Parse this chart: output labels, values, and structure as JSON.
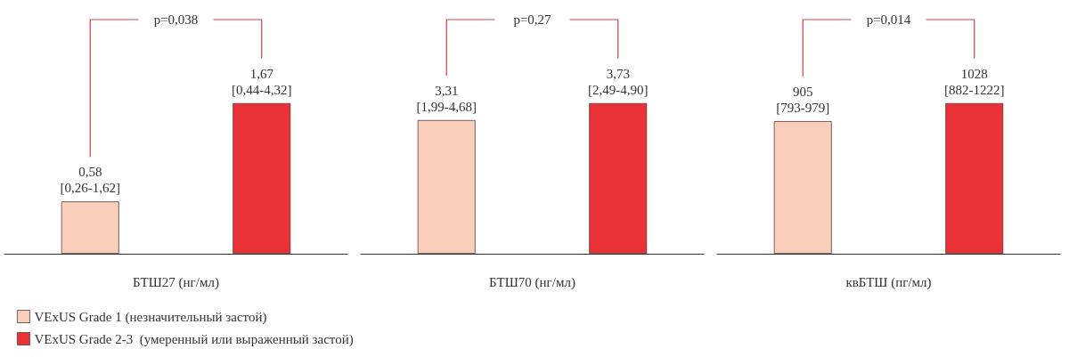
{
  "chart_data": [
    {
      "type": "bar",
      "xlabel": "БТШ27 (нг/мл)",
      "categories": [
        null,
        null
      ],
      "legend": "bottom left",
      "stacked": true,
      "annotations": [
        "p=0,038"
      ],
      "series": [
        {
          "name": "VExUS Grade 1 (незначительный застой)",
          "color": "#f9cfbc",
          "values": [
            0.58,
            null
          ],
          "value_labels": [
            "0,58\n[0,26-1,62]",
            null
          ]
        },
        {
          "name": "VExUS Grade 2-3  (умеренный или выраженный застой)",
          "color": "#e83237",
          "values": [
            null,
            1.67
          ],
          "value_labels": [
            null,
            "1,67\n[0,44-4,32]"
          ]
        }
      ]
    },
    {
      "type": "bar",
      "xlabel": "БТШ70 (нг/мл)",
      "categories": [
        null,
        null
      ],
      "stacked": true,
      "annotations": [
        "p=0,27"
      ],
      "series": [
        {
          "color": "#f9cfbc",
          "values": [
            3.31,
            null
          ],
          "value_labels": [
            "3,31\n[1,99-4,68]",
            null
          ]
        },
        {
          "color": "#e83237",
          "values": [
            null,
            3.73
          ],
          "value_labels": [
            null,
            "3,73\n[2,49-4,90]"
          ]
        }
      ]
    },
    {
      "type": "bar",
      "xlabel": "квБТШ (пг/мл)",
      "categories": [
        null,
        null
      ],
      "stacked": true,
      "annotations": [
        "p=0,014"
      ],
      "series": [
        {
          "color": "#f9cfbc",
          "values": [
            905,
            null
          ],
          "value_labels": [
            "905\n[793-979]",
            null
          ]
        },
        {
          "color": "#e83237",
          "values": [
            null,
            1028
          ],
          "value_labels": [
            null,
            "1028\n[882-1222]"
          ]
        }
      ]
    }
  ]
}
